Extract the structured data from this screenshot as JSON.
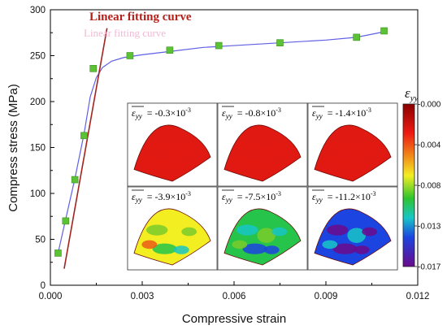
{
  "chart_data": {
    "type": "scatter",
    "title": "",
    "xlabel": "Compressive strain",
    "ylabel": "Compress stress (MPa)",
    "xlim": [
      0.0,
      0.012
    ],
    "ylim": [
      0,
      300
    ],
    "x_tick_labels": [
      "0.000",
      "0.003",
      "0.006",
      "0.009",
      "0.012"
    ],
    "y_tick_labels": [
      "0",
      "50",
      "100",
      "150",
      "200",
      "250",
      "300"
    ],
    "series": [
      {
        "type": "scatter",
        "marker": "square",
        "color": "#5cc235",
        "x": [
          0.00025,
          0.0005,
          0.0008,
          0.0011,
          0.0014,
          0.0026,
          0.0039,
          0.0055,
          0.0075,
          0.01,
          0.0109
        ],
        "y": [
          35,
          70,
          115,
          163,
          236,
          250,
          256,
          261,
          264,
          270,
          277
        ]
      },
      {
        "type": "line",
        "color": "#5f5fe6",
        "x": [
          0.00025,
          0.0005,
          0.0008,
          0.0011,
          0.0013,
          0.0015,
          0.0017,
          0.002,
          0.0024,
          0.003,
          0.004,
          0.005,
          0.006,
          0.0075,
          0.009,
          0.01,
          0.0109
        ],
        "y": [
          35,
          72,
          116,
          165,
          205,
          226,
          237,
          244,
          248,
          251,
          255,
          259,
          261,
          264,
          267,
          270,
          276
        ]
      },
      {
        "type": "line",
        "color": "#a3231f",
        "x": [
          0.00045,
          0.00185
        ],
        "y": [
          18,
          280
        ]
      }
    ],
    "annotations": {
      "fit_label": "Linear fitting curve",
      "ghost_label": "Linear fitting curve"
    },
    "inset": {
      "colorbar_title": "ε_yy",
      "colorbar_ticks": [
        "-0.000",
        "-0.004",
        "-0.008",
        "-0.013",
        "-0.017"
      ],
      "panels": [
        {
          "label": "= -0.3×10",
          "exp": "-3",
          "level": 0.02
        },
        {
          "label": "= -0.8×10",
          "exp": "-3",
          "level": 0.05
        },
        {
          "label": "= -1.4×10",
          "exp": "-3",
          "level": 0.09
        },
        {
          "label": "= -3.9×10",
          "exp": "-3",
          "level": 0.32
        },
        {
          "label": "= -7.5×10",
          "exp": "-3",
          "level": 0.55
        },
        {
          "label": "= -11.2×10",
          "exp": "-3",
          "level": 0.78
        }
      ]
    }
  }
}
